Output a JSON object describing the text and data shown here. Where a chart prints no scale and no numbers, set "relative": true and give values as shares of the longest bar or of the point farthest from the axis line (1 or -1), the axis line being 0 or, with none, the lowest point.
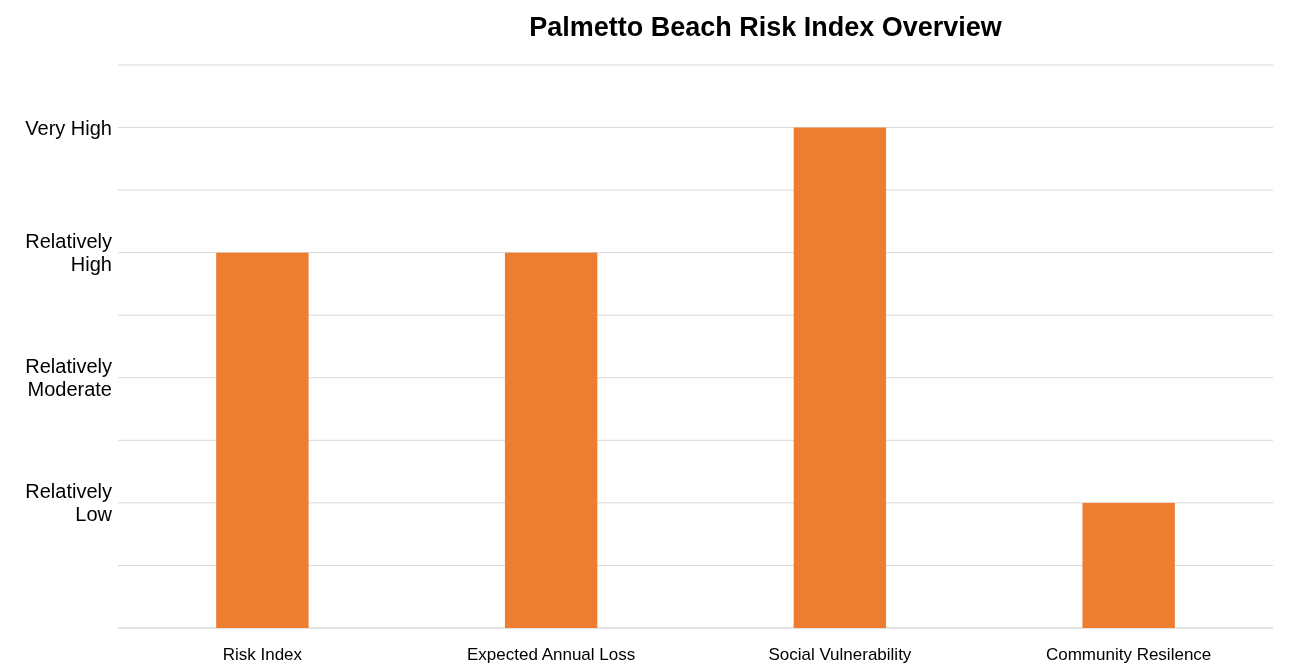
{
  "chart_data": {
    "type": "bar",
    "title": "Palmetto Beach Risk Index Overview",
    "categories": [
      "Risk Index",
      "Expected Annual Loss",
      "Social Vulnerability",
      "Community Resilence"
    ],
    "values": [
      0.75,
      0.75,
      1,
      0.25
    ],
    "color": "#ed7d31",
    "relative": true,
    "annotations": [
      "Relatively Low",
      "Relatively Moderate",
      "Relatively High",
      "Very High"
    ],
    "grid": true
  }
}
